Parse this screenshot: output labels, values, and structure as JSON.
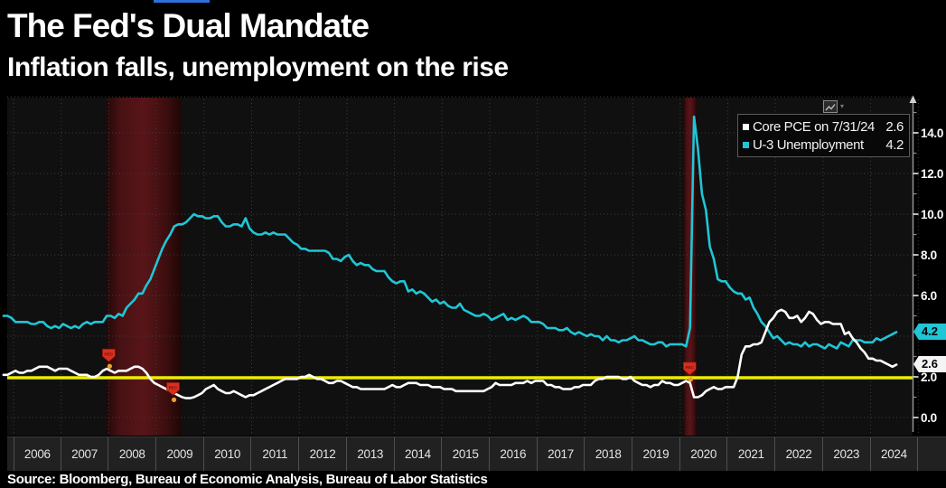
{
  "header": {
    "title": "The Fed's Dual Mandate",
    "subtitle": "Inflation falls, unemployment on the rise"
  },
  "source": "Source: Bloomberg, Bureau of Economic Analysis, Bureau of Labor Statistics",
  "legend": {
    "items": [
      {
        "label": "Core PCE on 7/31/24",
        "value": "2.6",
        "color": "#ffffff"
      },
      {
        "label": "U-3 Unemployment",
        "value": "4.2",
        "color": "#1fc6d6"
      }
    ]
  },
  "axis": {
    "x_years": [
      "2006",
      "2007",
      "2008",
      "2009",
      "2010",
      "2011",
      "2012",
      "2013",
      "2014",
      "2015",
      "2016",
      "2017",
      "2018",
      "2019",
      "2020",
      "2021",
      "2022",
      "2023",
      "2024"
    ],
    "y_ticks": [
      {
        "value": 14,
        "label": "14.0"
      },
      {
        "value": 12,
        "label": "12.0"
      },
      {
        "value": 10,
        "label": "10.0"
      },
      {
        "value": 8,
        "label": "8.0"
      },
      {
        "value": 6,
        "label": "6.0"
      },
      {
        "value": 2,
        "label": "2.0"
      },
      {
        "value": 0,
        "label": "0.0"
      }
    ],
    "badges": [
      {
        "text": "4.2",
        "bg": "#1fc6d6"
      },
      {
        "text": "2.6",
        "bg": "#f4f4f4"
      }
    ]
  },
  "colors": {
    "pce_line": "#ffffff",
    "u3_line": "#1fc6d6",
    "reference_line": "#eded00",
    "recession_band": "#571417",
    "rec_marker": "#d7301f",
    "accent_bar": "#2e6fd8"
  },
  "chart_data": {
    "type": "line",
    "title": "The Fed's Dual Mandate",
    "subtitle": "Inflation falls, unemployment on the rise",
    "xlabel": "",
    "ylabel": "",
    "xlim": [
      2005.75,
      2024.75
    ],
    "ylim": [
      -0.85,
      15.8
    ],
    "grid": "dotted",
    "legend_position": "top-right",
    "reference_line_y": 2.0,
    "recession_bands": [
      [
        2007.95,
        2009.52
      ],
      [
        2020.08,
        2020.35
      ]
    ],
    "rec_markers": [
      {
        "x": 2008.0,
        "y": 3.1
      },
      {
        "x": 2009.35,
        "y": 1.45
      },
      {
        "x": 2020.2,
        "y": 2.45
      }
    ],
    "x_start": 2005.79,
    "x_step": 0.083333,
    "series": [
      {
        "name": "Core PCE on 7/31/24",
        "color": "#ffffff",
        "last_value": 2.6,
        "values": [
          2.1,
          2.1,
          2.2,
          2.3,
          2.2,
          2.2,
          2.3,
          2.3,
          2.4,
          2.5,
          2.5,
          2.5,
          2.4,
          2.3,
          2.4,
          2.4,
          2.4,
          2.3,
          2.2,
          2.1,
          2.1,
          2.1,
          2.0,
          2.0,
          2.1,
          2.3,
          2.4,
          2.3,
          2.2,
          2.3,
          2.3,
          2.3,
          2.4,
          2.5,
          2.5,
          2.4,
          2.2,
          1.9,
          1.7,
          1.6,
          1.5,
          1.4,
          1.3,
          1.2,
          1.1,
          1.0,
          0.95,
          0.95,
          1.0,
          1.1,
          1.2,
          1.4,
          1.5,
          1.6,
          1.4,
          1.3,
          1.2,
          1.2,
          1.3,
          1.2,
          1.1,
          1.0,
          1.1,
          1.1,
          1.2,
          1.3,
          1.4,
          1.5,
          1.6,
          1.7,
          1.8,
          1.9,
          1.9,
          1.9,
          1.9,
          2.0,
          2.0,
          2.1,
          2.0,
          1.9,
          1.9,
          1.8,
          1.7,
          1.7,
          1.8,
          1.8,
          1.7,
          1.6,
          1.5,
          1.5,
          1.4,
          1.4,
          1.4,
          1.4,
          1.4,
          1.4,
          1.4,
          1.5,
          1.6,
          1.5,
          1.5,
          1.6,
          1.7,
          1.7,
          1.7,
          1.6,
          1.6,
          1.6,
          1.5,
          1.5,
          1.5,
          1.4,
          1.4,
          1.4,
          1.3,
          1.3,
          1.3,
          1.3,
          1.3,
          1.3,
          1.3,
          1.3,
          1.4,
          1.5,
          1.7,
          1.6,
          1.6,
          1.6,
          1.6,
          1.7,
          1.7,
          1.7,
          1.8,
          1.7,
          1.8,
          1.8,
          1.8,
          1.6,
          1.6,
          1.5,
          1.5,
          1.4,
          1.4,
          1.4,
          1.5,
          1.5,
          1.6,
          1.6,
          1.6,
          1.8,
          1.9,
          1.9,
          2.0,
          2.0,
          2.0,
          2.0,
          1.9,
          1.9,
          2.0,
          1.8,
          1.7,
          1.6,
          1.6,
          1.5,
          1.6,
          1.6,
          1.8,
          1.7,
          1.7,
          1.6,
          1.6,
          1.7,
          1.8,
          1.7,
          1.0,
          1.0,
          1.1,
          1.3,
          1.4,
          1.5,
          1.4,
          1.4,
          1.5,
          1.5,
          1.5,
          2.0,
          3.1,
          3.5,
          3.5,
          3.6,
          3.6,
          3.7,
          4.2,
          4.7,
          4.9,
          5.2,
          5.3,
          5.2,
          4.9,
          4.9,
          5.0,
          4.7,
          4.9,
          5.2,
          5.1,
          4.8,
          4.6,
          4.7,
          4.7,
          4.6,
          4.6,
          4.6,
          4.1,
          4.2,
          3.9,
          3.7,
          3.4,
          3.2,
          2.9,
          2.9,
          2.8,
          2.8,
          2.7,
          2.6,
          2.5,
          2.6
        ]
      },
      {
        "name": "U-3 Unemployment",
        "color": "#1fc6d6",
        "last_value": 4.2,
        "values": [
          5.0,
          5.0,
          4.9,
          4.7,
          4.7,
          4.7,
          4.7,
          4.6,
          4.6,
          4.7,
          4.7,
          4.5,
          4.4,
          4.5,
          4.4,
          4.6,
          4.5,
          4.4,
          4.5,
          4.4,
          4.6,
          4.7,
          4.6,
          4.7,
          4.7,
          4.7,
          5.0,
          5.0,
          4.9,
          5.1,
          5.0,
          5.4,
          5.6,
          5.8,
          6.1,
          6.1,
          6.5,
          6.8,
          7.3,
          7.8,
          8.3,
          8.7,
          9.0,
          9.4,
          9.5,
          9.5,
          9.6,
          9.8,
          10.0,
          9.9,
          9.9,
          9.8,
          9.8,
          9.9,
          9.9,
          9.6,
          9.4,
          9.4,
          9.5,
          9.5,
          9.4,
          9.8,
          9.3,
          9.1,
          9.0,
          9.0,
          9.1,
          9.0,
          9.1,
          9.0,
          9.0,
          9.0,
          8.8,
          8.6,
          8.5,
          8.3,
          8.3,
          8.2,
          8.2,
          8.2,
          8.2,
          8.2,
          8.1,
          7.8,
          7.8,
          7.7,
          7.9,
          8.0,
          7.7,
          7.5,
          7.6,
          7.5,
          7.5,
          7.3,
          7.2,
          7.2,
          7.2,
          6.9,
          6.7,
          6.6,
          6.7,
          6.7,
          6.2,
          6.3,
          6.1,
          6.2,
          6.1,
          5.9,
          5.7,
          5.8,
          5.6,
          5.7,
          5.5,
          5.4,
          5.4,
          5.6,
          5.3,
          5.2,
          5.1,
          5.0,
          5.0,
          5.1,
          5.0,
          4.8,
          4.9,
          5.0,
          5.1,
          4.8,
          4.9,
          4.8,
          4.9,
          5.0,
          4.9,
          4.7,
          4.7,
          4.7,
          4.6,
          4.4,
          4.4,
          4.4,
          4.3,
          4.3,
          4.4,
          4.2,
          4.1,
          4.2,
          4.1,
          4.0,
          4.1,
          4.0,
          4.0,
          3.8,
          4.0,
          3.8,
          3.8,
          3.7,
          3.8,
          3.8,
          3.9,
          4.0,
          3.8,
          3.8,
          3.7,
          3.6,
          3.6,
          3.7,
          3.7,
          3.5,
          3.6,
          3.6,
          3.6,
          3.6,
          3.5,
          4.4,
          14.8,
          13.2,
          11.0,
          10.2,
          8.4,
          7.8,
          6.8,
          6.7,
          6.7,
          6.4,
          6.2,
          6.1,
          6.1,
          5.8,
          5.9,
          5.4,
          5.1,
          4.7,
          4.5,
          4.2,
          3.9,
          4.0,
          3.8,
          3.6,
          3.7,
          3.6,
          3.6,
          3.5,
          3.7,
          3.5,
          3.6,
          3.6,
          3.5,
          3.4,
          3.6,
          3.5,
          3.4,
          3.7,
          3.6,
          3.5,
          3.8,
          3.8,
          3.8,
          3.7,
          3.7,
          3.7,
          3.9,
          3.8,
          3.9,
          4.0,
          4.1,
          4.2
        ]
      }
    ]
  }
}
